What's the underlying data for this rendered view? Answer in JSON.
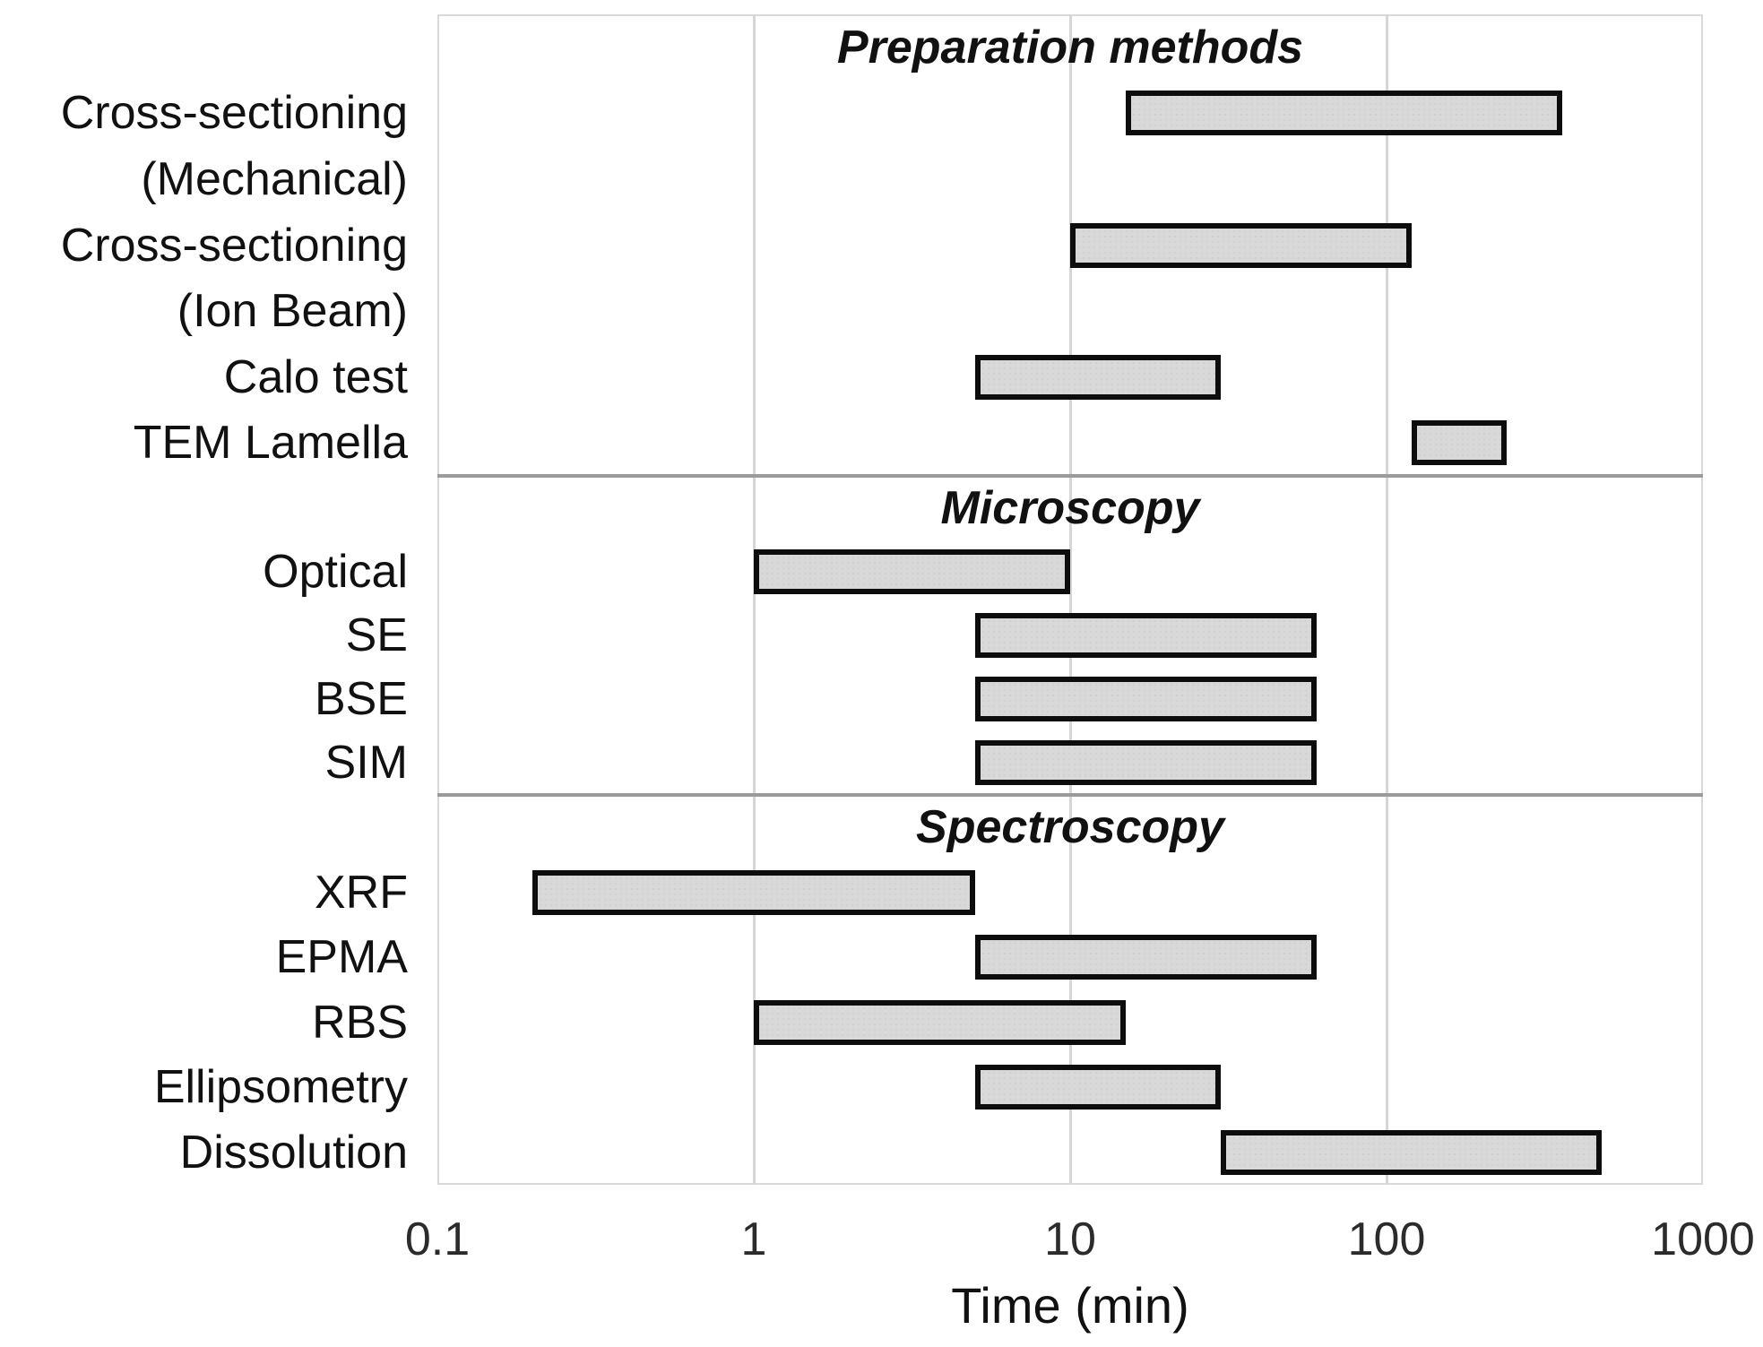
{
  "chart_data": {
    "type": "bar",
    "orientation": "horizontal-range",
    "title": "",
    "xlabel": "Time (min)",
    "ylabel": "",
    "x_axis": {
      "scale": "log",
      "min": 0.1,
      "max": 1000,
      "tick_values": [
        0.1,
        1,
        10,
        100,
        1000
      ],
      "tick_labels": [
        "0.1",
        "1",
        "10",
        "100",
        "1000"
      ],
      "gridlines": "vertical-decades"
    },
    "legend": "none",
    "sections": [
      {
        "title": "Preparation methods",
        "rows": [
          {
            "label": "Cross-sectioning",
            "start": 15,
            "end": 360
          },
          {
            "label": "(Mechanical)"
          },
          {
            "label": "Cross-sectioning",
            "start": 10,
            "end": 120
          },
          {
            "label": "(Ion Beam)"
          },
          {
            "label": "Calo test",
            "start": 5,
            "end": 30
          },
          {
            "label": "TEM Lamella",
            "start": 120,
            "end": 240
          }
        ]
      },
      {
        "title": "Microscopy",
        "rows": [
          {
            "label": "Optical",
            "start": 1,
            "end": 10
          },
          {
            "label": "SE",
            "start": 5,
            "end": 60
          },
          {
            "label": "BSE",
            "start": 5,
            "end": 60
          },
          {
            "label": "SIM",
            "start": 5,
            "end": 60
          }
        ]
      },
      {
        "title": "Spectroscopy",
        "rows": [
          {
            "label": "XRF",
            "start": 0.2,
            "end": 5
          },
          {
            "label": "EPMA",
            "start": 5,
            "end": 60
          },
          {
            "label": "RBS",
            "start": 1,
            "end": 15
          },
          {
            "label": "Ellipsometry",
            "start": 5,
            "end": 30
          },
          {
            "label": "Dissolution",
            "start": 30,
            "end": 480
          }
        ]
      }
    ],
    "colors": {
      "bar_fill": "#d8d8d8",
      "bar_border": "#0d0d0d",
      "gridline": "#d6d6d6",
      "plot_border": "#d9d9d9",
      "section_divider": "#9b9b9b",
      "text": "#111111"
    }
  }
}
